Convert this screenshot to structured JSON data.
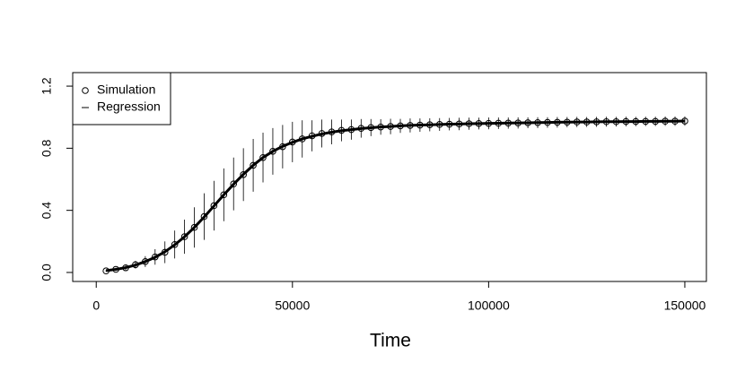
{
  "chart_data": {
    "type": "scatter-errorbar",
    "xlabel": "Time",
    "x": [
      2500,
      5000,
      7500,
      10000,
      12500,
      15000,
      17500,
      20000,
      22500,
      25000,
      27500,
      30000,
      32500,
      35000,
      37500,
      40000,
      42500,
      45000,
      47500,
      50000,
      52500,
      55000,
      57500,
      60000,
      62500,
      65000,
      67500,
      70000,
      72500,
      75000,
      77500,
      80000,
      82500,
      85000,
      87500,
      90000,
      92500,
      95000,
      97500,
      100000,
      102500,
      105000,
      107500,
      110000,
      112500,
      115000,
      117500,
      120000,
      122500,
      125000,
      127500,
      130000,
      132500,
      135000,
      137500,
      140000,
      142500,
      145000,
      147500,
      150000
    ],
    "series": [
      {
        "name": "Simulation",
        "color": "#000000",
        "marker": "circle",
        "values": [
          0.01,
          0.02,
          0.03,
          0.05,
          0.07,
          0.1,
          0.13,
          0.18,
          0.23,
          0.29,
          0.36,
          0.43,
          0.5,
          0.57,
          0.63,
          0.69,
          0.74,
          0.78,
          0.81,
          0.84,
          0.86,
          0.88,
          0.895,
          0.905,
          0.915,
          0.92,
          0.928,
          0.933,
          0.937,
          0.94,
          0.944,
          0.947,
          0.949,
          0.951,
          0.953,
          0.955,
          0.956,
          0.958,
          0.959,
          0.96,
          0.961,
          0.962,
          0.963,
          0.964,
          0.965,
          0.966,
          0.967,
          0.968,
          0.969,
          0.969,
          0.97,
          0.971,
          0.971,
          0.972,
          0.972,
          0.973,
          0.973,
          0.974,
          0.974,
          0.975
        ],
        "errors": [
          0.005,
          0.01,
          0.015,
          0.025,
          0.035,
          0.05,
          0.07,
          0.09,
          0.11,
          0.13,
          0.15,
          0.16,
          0.17,
          0.17,
          0.17,
          0.17,
          0.16,
          0.15,
          0.14,
          0.13,
          0.12,
          0.1,
          0.09,
          0.08,
          0.07,
          0.065,
          0.06,
          0.055,
          0.05,
          0.05,
          0.045,
          0.045,
          0.043,
          0.042,
          0.041,
          0.04,
          0.04,
          0.039,
          0.038,
          0.038,
          0.037,
          0.036,
          0.036,
          0.035,
          0.035,
          0.034,
          0.034,
          0.033,
          0.033,
          0.032,
          0.032,
          0.032,
          0.031,
          0.031,
          0.03,
          0.03,
          0.03,
          0.03,
          0.03,
          0.03
        ]
      },
      {
        "name": "Regression",
        "color": "#000000",
        "marker": "line",
        "values": [
          0.012,
          0.02,
          0.031,
          0.048,
          0.07,
          0.098,
          0.133,
          0.178,
          0.23,
          0.29,
          0.357,
          0.428,
          0.5,
          0.568,
          0.632,
          0.69,
          0.74,
          0.78,
          0.812,
          0.838,
          0.86,
          0.877,
          0.892,
          0.903,
          0.913,
          0.92,
          0.927,
          0.932,
          0.937,
          0.94,
          0.944,
          0.947,
          0.949,
          0.951,
          0.953,
          0.955,
          0.956,
          0.958,
          0.959,
          0.96,
          0.961,
          0.962,
          0.963,
          0.964,
          0.965,
          0.966,
          0.967,
          0.968,
          0.969,
          0.969,
          0.97,
          0.971,
          0.971,
          0.972,
          0.972,
          0.973,
          0.973,
          0.974,
          0.974,
          0.975
        ]
      }
    ],
    "xlim": [
      -6000,
      155500
    ],
    "ylim": [
      -0.058,
      1.287
    ],
    "xticks": [
      0,
      50000,
      100000,
      150000
    ],
    "yticks": [
      {
        "value": 0,
        "label": "0.0"
      },
      0.4,
      0.8,
      1.2
    ],
    "legend": "top-left"
  }
}
